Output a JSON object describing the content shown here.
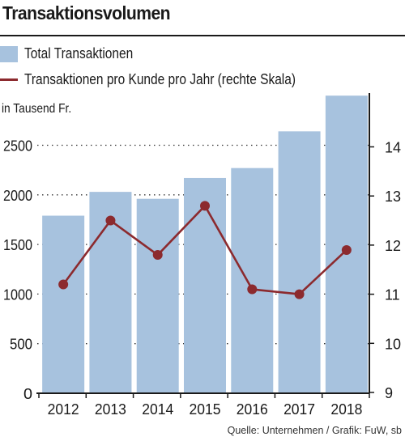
{
  "chart_data": {
    "type": "bar",
    "title": "Transaktionsvolumen",
    "categories": [
      "2012",
      "2013",
      "2014",
      "2015",
      "2016",
      "2017",
      "2018"
    ],
    "series": [
      {
        "name": "Total Transaktionen",
        "type": "bar",
        "axis": "left",
        "color": "#a7c2de",
        "values": [
          1790,
          2030,
          1960,
          2170,
          2270,
          2640,
          3000
        ]
      },
      {
        "name": "Transaktionen pro Kunde pro Jahr (rechte Skala)",
        "type": "line",
        "axis": "right",
        "color": "#8c2a2e",
        "values": [
          11.2,
          12.5,
          11.8,
          12.8,
          11.1,
          11.0,
          11.9
        ]
      }
    ],
    "ylabel": "in Tausend Fr.",
    "ylim": [
      0,
      3000
    ],
    "yticks": [
      "0",
      "500",
      "1000",
      "1500",
      "2000",
      "2500"
    ],
    "y2lim": [
      9,
      15
    ],
    "y2ticks": [
      "9",
      "10",
      "11",
      "12",
      "13",
      "14"
    ],
    "grid": "dotted horizontal",
    "legend": "top-left",
    "source": "Quelle: Unternehmen / Grafik: FuW, sb"
  }
}
